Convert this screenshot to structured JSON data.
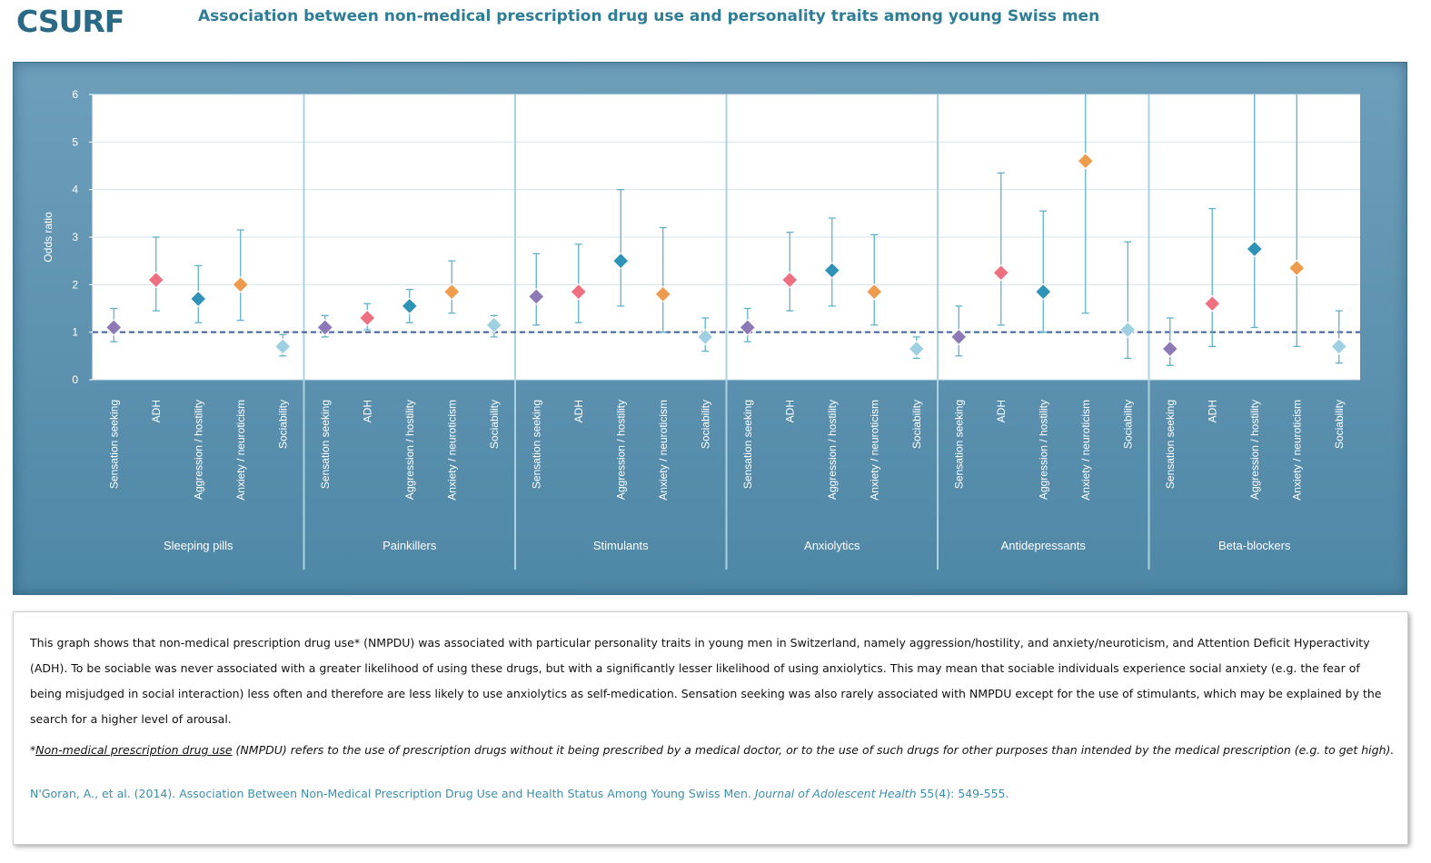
{
  "header": {
    "logo": "CSURF",
    "title": "Association between non-medical prescription drug use and personality traits among young Swiss men"
  },
  "chart_data": {
    "type": "scatter",
    "ylabel": "Odds ratio",
    "ylim": [
      0,
      6
    ],
    "yticks": [
      0,
      1,
      2,
      3,
      4,
      5,
      6
    ],
    "reference_line": 1,
    "grid": true,
    "traits": [
      "Sensation seeking",
      "ADH",
      "Aggression / hostility",
      "Anxiety / neuroticism",
      "Sociability"
    ],
    "trait_colors": [
      "#8d79b6",
      "#ee6f80",
      "#2f93b7",
      "#ef9b4e",
      "#9ed0e2"
    ],
    "groups": [
      {
        "name": "Sleeping pills",
        "points": [
          {
            "or": 1.1,
            "low": 0.8,
            "high": 1.5
          },
          {
            "or": 2.1,
            "low": 1.45,
            "high": 3.0
          },
          {
            "or": 1.7,
            "low": 1.2,
            "high": 2.4
          },
          {
            "or": 2.0,
            "low": 1.25,
            "high": 3.15
          },
          {
            "or": 0.7,
            "low": 0.5,
            "high": 0.95
          }
        ]
      },
      {
        "name": "Painkillers",
        "points": [
          {
            "or": 1.1,
            "low": 0.9,
            "high": 1.35
          },
          {
            "or": 1.3,
            "low": 1.05,
            "high": 1.6
          },
          {
            "or": 1.55,
            "low": 1.2,
            "high": 1.9
          },
          {
            "or": 1.85,
            "low": 1.4,
            "high": 2.5
          },
          {
            "or": 1.15,
            "low": 0.9,
            "high": 1.35
          }
        ]
      },
      {
        "name": "Stimulants",
        "points": [
          {
            "or": 1.75,
            "low": 1.15,
            "high": 2.65
          },
          {
            "or": 1.85,
            "low": 1.2,
            "high": 2.85
          },
          {
            "or": 2.5,
            "low": 1.55,
            "high": 4.0
          },
          {
            "or": 1.8,
            "low": 1.0,
            "high": 3.2
          },
          {
            "or": 0.9,
            "low": 0.6,
            "high": 1.3
          }
        ]
      },
      {
        "name": "Anxiolytics",
        "points": [
          {
            "or": 1.1,
            "low": 0.8,
            "high": 1.5
          },
          {
            "or": 2.1,
            "low": 1.45,
            "high": 3.1
          },
          {
            "or": 2.3,
            "low": 1.55,
            "high": 3.4
          },
          {
            "or": 1.85,
            "low": 1.15,
            "high": 3.05
          },
          {
            "or": 0.65,
            "low": 0.45,
            "high": 0.9
          }
        ]
      },
      {
        "name": "Antidepressants",
        "points": [
          {
            "or": 0.9,
            "low": 0.5,
            "high": 1.55
          },
          {
            "or": 2.25,
            "low": 1.15,
            "high": 4.35
          },
          {
            "or": 1.85,
            "low": 1.0,
            "high": 3.55
          },
          {
            "or": 4.6,
            "low": 1.4,
            "high": 6.0
          },
          {
            "or": 1.05,
            "low": 0.45,
            "high": 2.9
          }
        ]
      },
      {
        "name": "Beta-blockers",
        "points": [
          {
            "or": 0.65,
            "low": 0.3,
            "high": 1.3
          },
          {
            "or": 1.6,
            "low": 0.7,
            "high": 3.6
          },
          {
            "or": 2.75,
            "low": 1.1,
            "high": 6.0
          },
          {
            "or": 2.35,
            "low": 0.7,
            "high": 6.0
          },
          {
            "or": 0.7,
            "low": 0.35,
            "high": 1.45
          }
        ]
      }
    ]
  },
  "description": {
    "main": "This graph shows that non-medical prescription drug use* (NMPDU) was associated with particular  personality traits in young men in Switzerland, namely aggression/hostility,  and anxiety/neuroticism, and Attention Deficit Hyperactivity (ADH). To be sociable  was never associated with a greater likelihood  of using these drugs, but with a significantly  lesser likelihood  of using anxiolytics.   This may mean that sociable individuals experience social anxiety (e.g. the fear of being misjudged in social interaction)  less  often and therefore are less likely to use anxiolytics as self-medication. Sensation seeking was also rarely associated with NMPDU  except for the use of stimulants, which may be explained by the search for a higher level of arousal.",
    "note_prefix": "*",
    "note_term": "Non-medical prescription drug use",
    "note_rest": " (NMPDU) refers to the use of prescription drugs without it being prescribed by a medical doctor, or to the use of such drugs for other purposes than intended by the medical prescription (e.g. to get high).",
    "reference_text": "N'Goran, A., et al. (2014).  Association Between Non-Medical Prescription Drug Use and Health Status Among Young Swiss Men. ",
    "reference_journal": "Journal of Adolescent Health",
    "reference_end": " 55(4): 549-555."
  }
}
